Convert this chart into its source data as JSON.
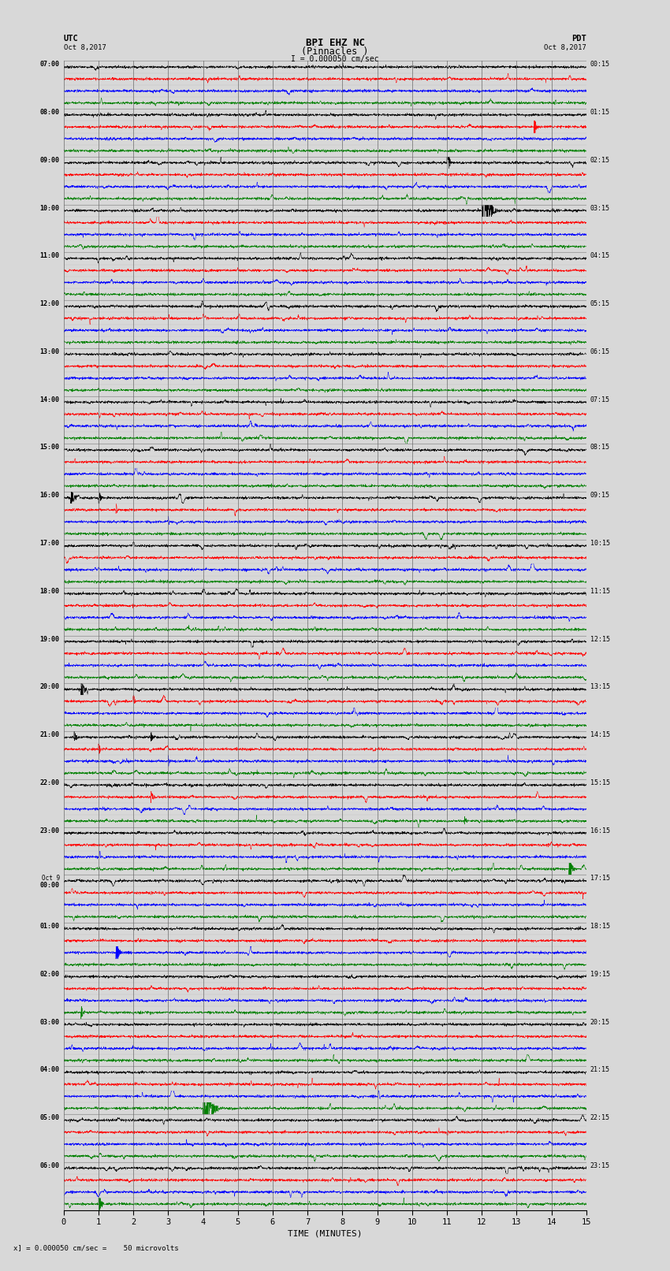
{
  "title_line1": "BPI EHZ NC",
  "title_line2": "(Pinnacles )",
  "scale_label": "= 0.000050 cm/sec",
  "footer_label": "x] = 0.000050 cm/sec =    50 microvolts",
  "utc_label1": "UTC",
  "utc_label2": "Oct 8,2017",
  "pdt_label1": "PDT",
  "pdt_label2": "Oct 8,2017",
  "xlabel": "TIME (MINUTES)",
  "left_times": [
    "07:00",
    "08:00",
    "09:00",
    "10:00",
    "11:00",
    "12:00",
    "13:00",
    "14:00",
    "15:00",
    "16:00",
    "17:00",
    "18:00",
    "19:00",
    "20:00",
    "21:00",
    "22:00",
    "23:00",
    "Oct 9\n00:00",
    "01:00",
    "02:00",
    "03:00",
    "04:00",
    "05:00",
    "06:00"
  ],
  "right_times": [
    "00:15",
    "01:15",
    "02:15",
    "03:15",
    "04:15",
    "05:15",
    "06:15",
    "07:15",
    "08:15",
    "09:15",
    "10:15",
    "11:15",
    "12:15",
    "13:15",
    "14:15",
    "15:15",
    "16:15",
    "17:15",
    "18:15",
    "19:15",
    "20:15",
    "21:15",
    "22:15",
    "23:15"
  ],
  "n_rows": 24,
  "n_traces_per_row": 4,
  "trace_colors": [
    "black",
    "red",
    "blue",
    "green"
  ],
  "bg_color": "#d8d8d8",
  "grid_color": "#888888",
  "minutes": 15,
  "samples_per_row": 3000,
  "figsize": [
    8.5,
    16.13
  ],
  "dpi": 100
}
